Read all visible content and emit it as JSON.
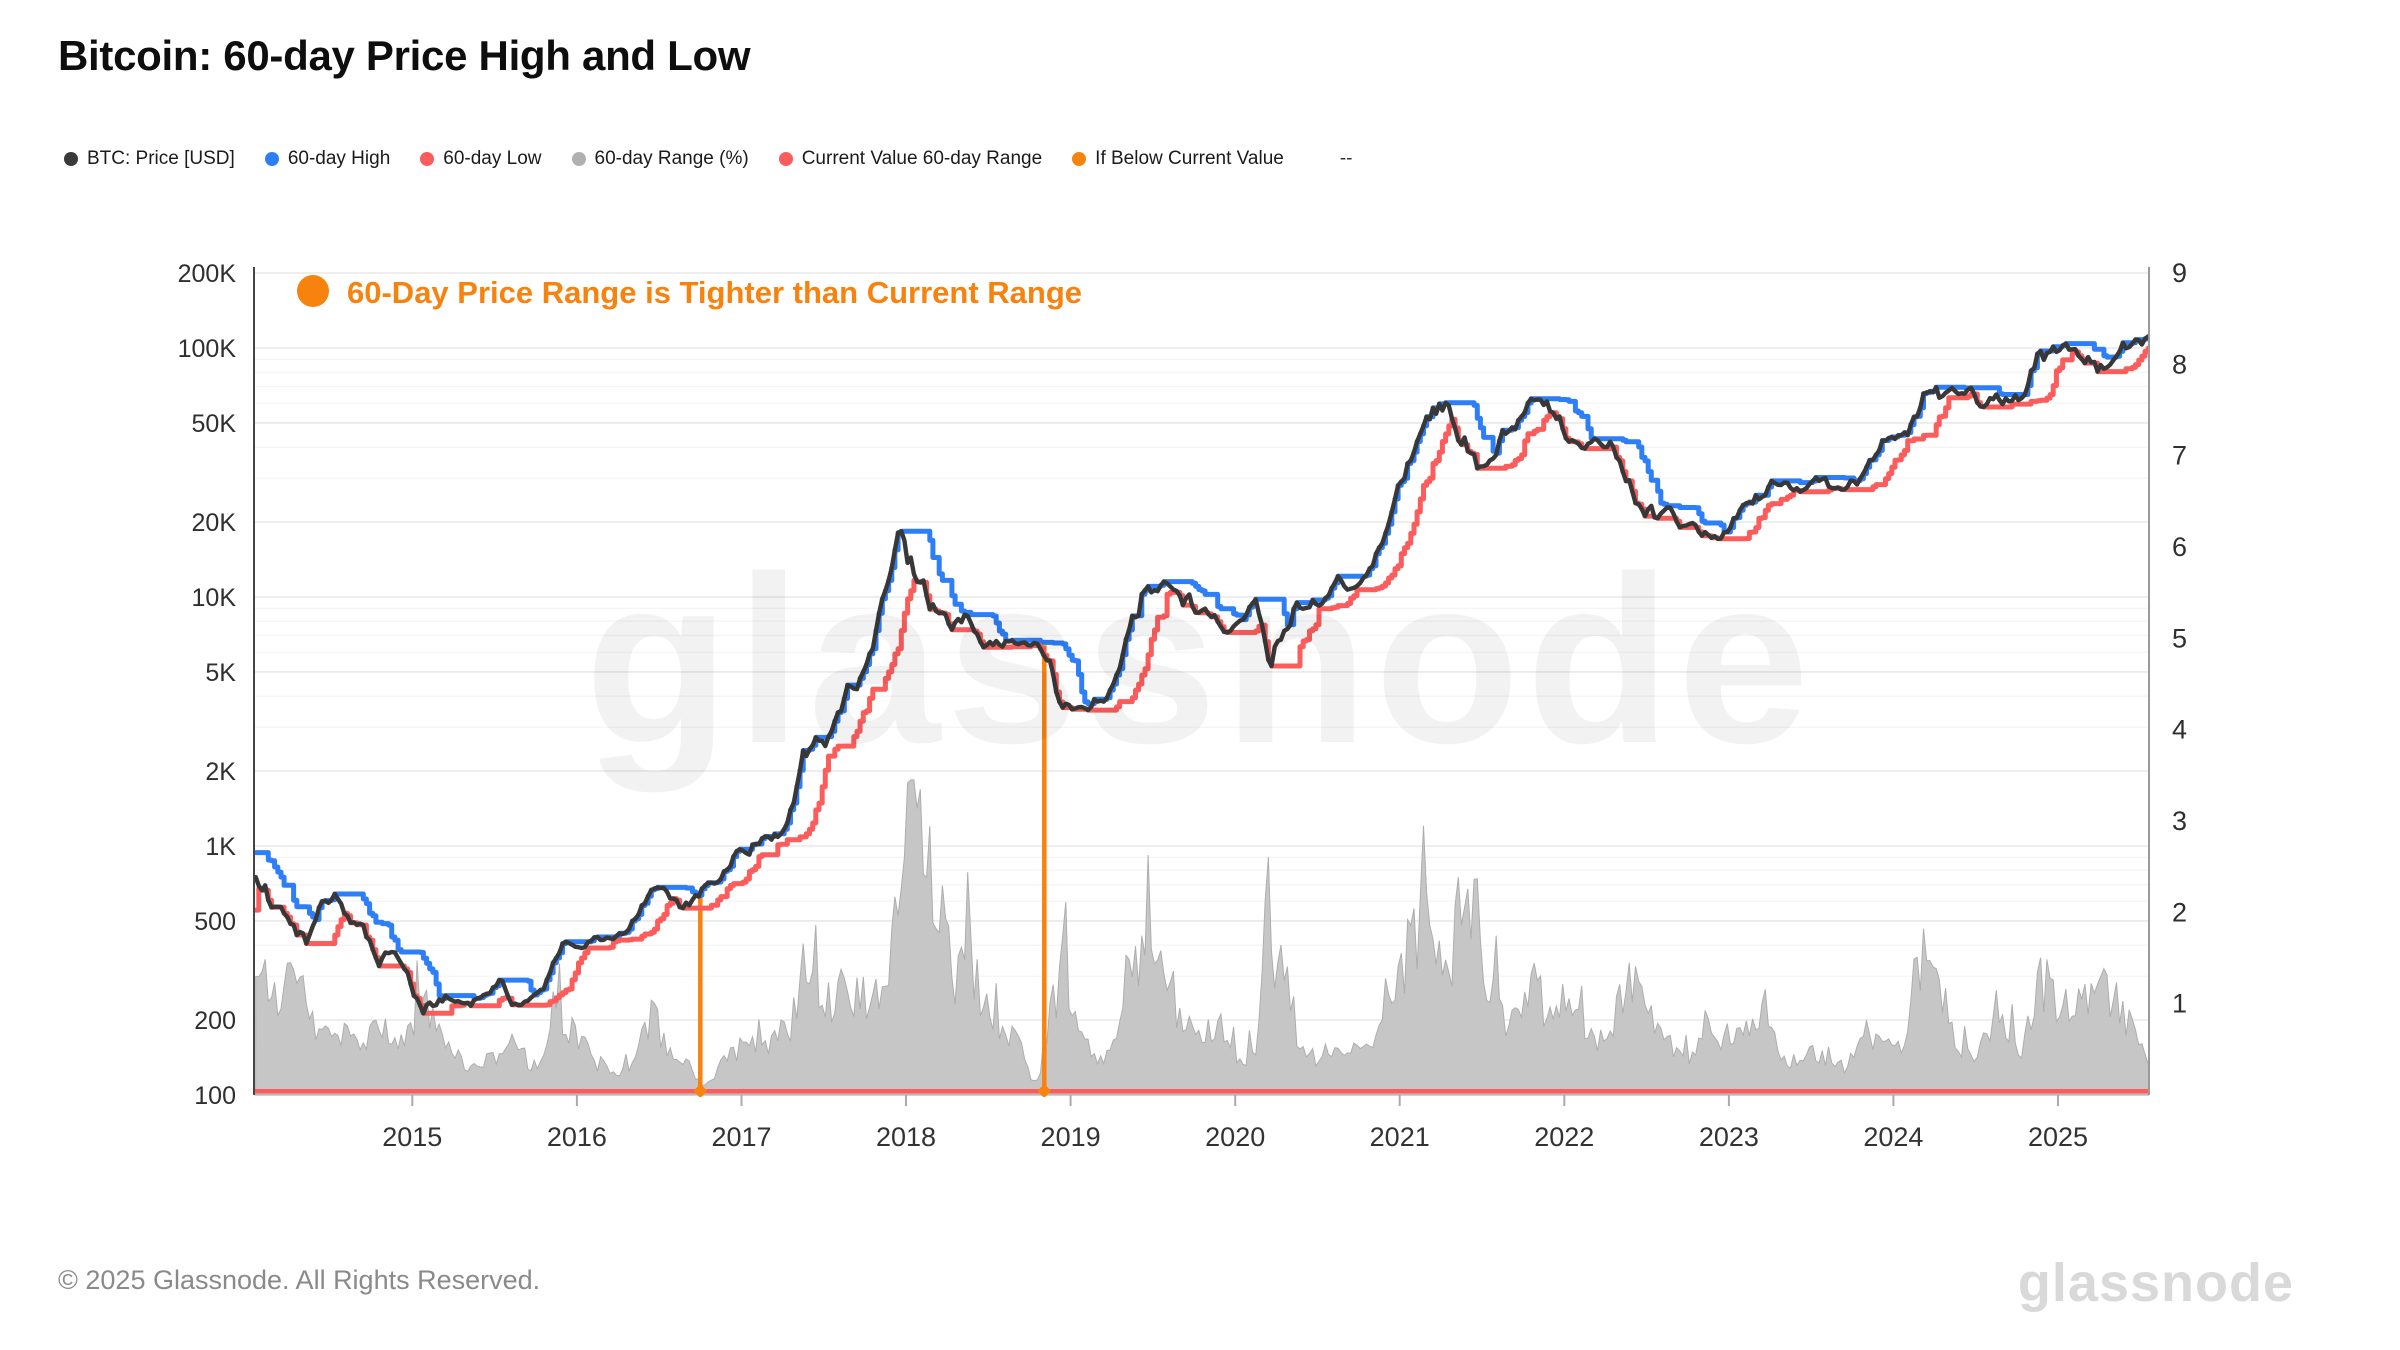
{
  "header": {
    "title": "Bitcoin: 60-day Price High and Low"
  },
  "legend": {
    "items": [
      {
        "label": "BTC: Price [USD]",
        "color": "#3a3a3a"
      },
      {
        "label": "60-day High",
        "color": "#2e7ef7"
      },
      {
        "label": "60-day Low",
        "color": "#fb5d5d"
      },
      {
        "label": "60-day Range (%)",
        "color": "#b0b0b0"
      },
      {
        "label": "Current Value 60-day Range",
        "color": "#fb5d5d"
      },
      {
        "label": "If Below Current Value",
        "color": "#f7820e"
      },
      {
        "label": "--",
        "color": null
      }
    ]
  },
  "annotation": {
    "text": "60-Day Price Range is Tighter than Current Range",
    "color": "#f7820e"
  },
  "watermark": "glassnode",
  "footer": {
    "copyright": "© 2025 Glassnode. All Rights Reserved.",
    "logo_text": "glassnode"
  },
  "chart_data": {
    "type": "line",
    "title": "Bitcoin: 60-day Price High and Low",
    "grid": "horizontal-only",
    "legend_position": "top",
    "x_domain": [
      2014.038,
      2025.553
    ],
    "x_ticks": [
      2015,
      2016,
      2017,
      2018,
      2019,
      2020,
      2021,
      2022,
      2023,
      2024,
      2025
    ],
    "y_left": {
      "scale": "log",
      "domain": [
        100,
        200000
      ],
      "ticks": [
        {
          "value": 200000,
          "label": "200K"
        },
        {
          "value": 100000,
          "label": "100K"
        },
        {
          "value": 50000,
          "label": "50K"
        },
        {
          "value": 20000,
          "label": "20K"
        },
        {
          "value": 10000,
          "label": "10K"
        },
        {
          "value": 5000,
          "label": "5K"
        },
        {
          "value": 2000,
          "label": "2K"
        },
        {
          "value": 1000,
          "label": "1K"
        },
        {
          "value": 500,
          "label": "500"
        },
        {
          "value": 200,
          "label": "200"
        },
        {
          "value": 100,
          "label": "100"
        }
      ]
    },
    "y_right": {
      "scale": "linear",
      "domain": [
        0,
        9
      ],
      "ticks": [
        9,
        8,
        7,
        6,
        5,
        4,
        3,
        2,
        1
      ]
    },
    "series": [
      {
        "name": "BTC: Price [USD]",
        "axis": "left",
        "type": "line",
        "color": "#383838",
        "resolution": "monthly-mid-estimates",
        "lead_in_months": [
          "2013-11",
          "2013-12"
        ],
        "lead_in_values": [
          500,
          950
        ],
        "values_by_year": {
          "2014": [
            800,
            620,
            560,
            445,
            445,
            600,
            620,
            500,
            480,
            340,
            370,
            320
          ],
          "2015": [
            215,
            240,
            255,
            235,
            237,
            260,
            285,
            230,
            236,
            270,
            360,
            430
          ],
          "2016": [
            385,
            420,
            415,
            450,
            530,
            670,
            660,
            575,
            610,
            700,
            740,
            960
          ],
          "2017": [
            920,
            1050,
            1080,
            1300,
            2300,
            2500,
            2700,
            4400,
            4300,
            6100,
            10000,
            18500
          ],
          "2018": [
            13000,
            9800,
            8500,
            8000,
            8200,
            6700,
            7000,
            6800,
            6600,
            6450,
            5300,
            3600
          ],
          "2019": [
            3600,
            3700,
            3950,
            5100,
            7500,
            12000,
            10800,
            10500,
            9600,
            8500,
            8200,
            7300
          ],
          "2020": [
            8500,
            9600,
            5600,
            7100,
            9200,
            9400,
            9900,
            11600,
            10600,
            12000,
            16000,
            23000
          ],
          "2021": [
            34000,
            48000,
            57000,
            61000,
            43000,
            35500,
            32500,
            45000,
            47000,
            59000,
            63000,
            49000
          ],
          "2022": [
            42000,
            40000,
            42000,
            41500,
            31500,
            22000,
            21500,
            23000,
            19500,
            19500,
            17500,
            16800
          ],
          "2023": [
            21000,
            23500,
            26000,
            29000,
            27500,
            26500,
            30000,
            28000,
            26500,
            30000,
            36500,
            43000
          ],
          "2024": [
            43500,
            50000,
            68000,
            66000,
            63500,
            67000,
            60000,
            60500,
            60000,
            65500,
            88000,
            99000
          ],
          "2025": [
            100000,
            96000,
            85000,
            83500,
            97000,
            106000,
            109000
          ]
        }
      },
      {
        "name": "60-day High",
        "axis": "left",
        "type": "step-line",
        "color": "#2e7ef7",
        "derived": "rolling 60-day maximum of BTC price"
      },
      {
        "name": "60-day Low",
        "axis": "left",
        "type": "step-line",
        "color": "#fb5d5d",
        "derived": "rolling 60-day minimum of BTC price"
      },
      {
        "name": "60-day Range (%)",
        "axis": "right",
        "type": "area",
        "color": "#c3c3c3",
        "resolution": "monthly-mid-estimates",
        "lead_in_values": [
          1.5,
          1.5
        ],
        "values_by_year": {
          "2014": [
            1.5,
            1.3,
            1.1,
            1.35,
            0.9,
            0.6,
            0.75,
            0.6,
            0.45,
            0.8,
            0.6,
            0.5
          ],
          "2015": [
            1.1,
            0.9,
            0.5,
            0.4,
            0.3,
            0.35,
            0.45,
            0.6,
            0.35,
            0.3,
            0.9,
            0.75
          ],
          "2016": [
            0.5,
            0.35,
            0.3,
            0.25,
            0.5,
            0.85,
            0.6,
            0.4,
            0.25,
            0.06,
            0.35,
            0.5
          ],
          "2017": [
            0.5,
            0.55,
            0.7,
            0.65,
            1.3,
            1.05,
            0.8,
            1.5,
            1.0,
            0.9,
            1.4,
            2.2
          ],
          "2018": [
            3.3,
            2.6,
            1.9,
            1.3,
            1.5,
            1.1,
            0.8,
            0.7,
            0.45,
            0.08,
            0.9,
            1.3
          ],
          "2019": [
            0.7,
            0.5,
            0.4,
            0.7,
            1.3,
            1.85,
            1.5,
            0.9,
            0.8,
            0.6,
            0.7,
            0.5
          ],
          "2020": [
            0.4,
            0.5,
            1.7,
            1.3,
            0.7,
            0.4,
            0.5,
            0.6,
            0.5,
            0.5,
            0.9,
            1.2
          ],
          "2021": [
            1.6,
            2.0,
            1.5,
            1.3,
            2.2,
            2.1,
            1.2,
            0.9,
            0.8,
            1.2,
            1.0,
            1.1
          ],
          "2022": [
            0.9,
            0.7,
            0.6,
            0.7,
            1.3,
            1.5,
            0.9,
            0.6,
            0.4,
            0.4,
            0.9,
            0.5
          ],
          "2023": [
            0.8,
            0.6,
            1.0,
            0.5,
            0.4,
            0.5,
            0.4,
            0.4,
            0.3,
            0.7,
            0.6,
            0.5
          ],
          "2024": [
            0.5,
            1.2,
            1.6,
            1.0,
            0.6,
            0.5,
            0.5,
            1.0,
            0.6,
            0.5,
            1.3,
            1.1
          ],
          "2025": [
            0.9,
            1.0,
            1.2,
            1.1,
            0.9,
            0.7,
            0.4
          ]
        }
      },
      {
        "name": "Current Value 60-day Range",
        "axis": "right",
        "type": "hline",
        "color": "#fb5d5d",
        "value": 0.04
      },
      {
        "name": "If Below Current Value",
        "axis": "left",
        "type": "event-vlines",
        "color": "#f7820e",
        "events": [
          {
            "date": 2016.75,
            "top_price": 660
          },
          {
            "date": 2018.84,
            "top_price": 6400
          }
        ]
      }
    ]
  }
}
